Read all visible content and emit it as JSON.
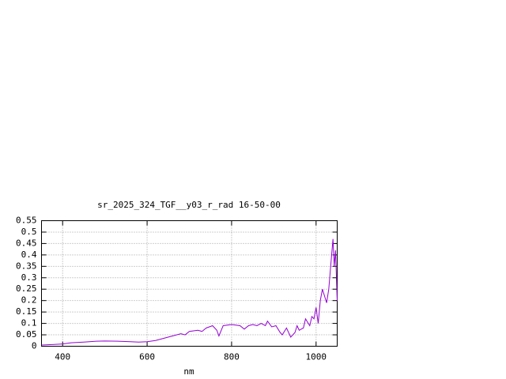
{
  "chart_data": {
    "type": "line",
    "title": "sr_2025_324_TGF__y03_r_rad 16-50-00",
    "x_label": "nm",
    "x": [
      350,
      380,
      400,
      420,
      450,
      480,
      500,
      530,
      560,
      580,
      600,
      620,
      640,
      660,
      680,
      690,
      700,
      720,
      730,
      740,
      755,
      765,
      770,
      780,
      800,
      820,
      830,
      840,
      850,
      860,
      870,
      880,
      885,
      895,
      905,
      915,
      920,
      930,
      940,
      950,
      955,
      960,
      970,
      975,
      985,
      990,
      995,
      1000,
      1005,
      1010,
      1015,
      1020,
      1025,
      1030,
      1040,
      1043,
      1046,
      1050
    ],
    "series": [
      {
        "color": "#9400d3",
        "values": [
          0.005,
          0.008,
          0.01,
          0.015,
          0.018,
          0.022,
          0.023,
          0.022,
          0.02,
          0.018,
          0.02,
          0.025,
          0.035,
          0.045,
          0.055,
          0.05,
          0.065,
          0.07,
          0.065,
          0.08,
          0.09,
          0.07,
          0.045,
          0.09,
          0.095,
          0.09,
          0.075,
          0.09,
          0.095,
          0.09,
          0.1,
          0.09,
          0.11,
          0.085,
          0.09,
          0.06,
          0.05,
          0.08,
          0.04,
          0.06,
          0.09,
          0.07,
          0.08,
          0.12,
          0.09,
          0.13,
          0.12,
          0.17,
          0.1,
          0.2,
          0.25,
          0.22,
          0.19,
          0.25,
          0.47,
          0.35,
          0.42,
          0.2
        ]
      }
    ],
    "xlim": [
      350,
      1050
    ],
    "xticks": [
      400,
      600,
      800,
      1000
    ],
    "ylim": [
      0,
      0.55
    ],
    "yticks": [
      0,
      0.05,
      0.1,
      0.15,
      0.2,
      0.25,
      0.3,
      0.35,
      0.4,
      0.45,
      0.5,
      0.55
    ],
    "grid": true
  }
}
